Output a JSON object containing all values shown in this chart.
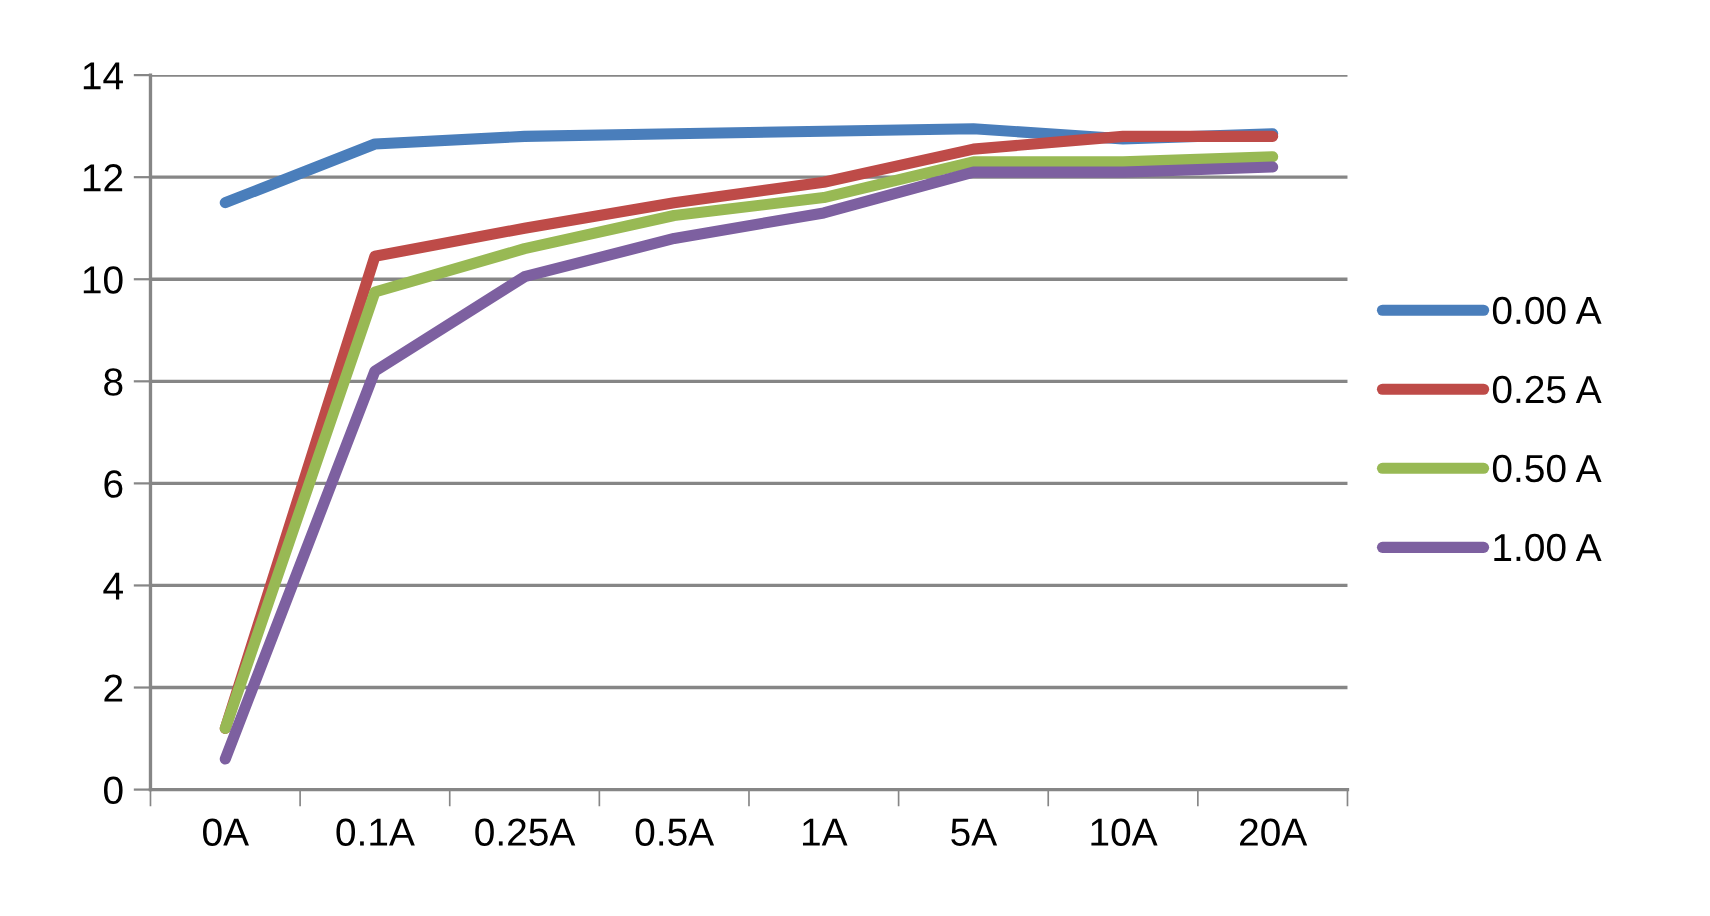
{
  "chart_data": {
    "type": "line",
    "categories": [
      "0A",
      "0.1A",
      "0.25A",
      "0.5A",
      "1A",
      "5A",
      "10A",
      "20A"
    ],
    "series": [
      {
        "name": "0.00 A",
        "color": "#4a7ebb",
        "values": [
          11.5,
          12.65,
          12.8,
          12.85,
          12.9,
          12.95,
          12.75,
          12.85
        ]
      },
      {
        "name": "0.25 A",
        "color": "#be4b48",
        "values": [
          1.2,
          10.45,
          11.0,
          11.5,
          11.9,
          12.55,
          12.8,
          12.8
        ]
      },
      {
        "name": "0.50 A",
        "color": "#98b954",
        "values": [
          1.2,
          9.75,
          10.6,
          11.25,
          11.6,
          12.3,
          12.3,
          12.4
        ]
      },
      {
        "name": "1.00 A",
        "color": "#7d60a0",
        "values": [
          0.6,
          8.2,
          10.05,
          10.8,
          11.3,
          12.1,
          12.1,
          12.2
        ]
      }
    ],
    "ylim": [
      0,
      14
    ],
    "yticks": [
      0,
      2,
      4,
      6,
      8,
      10,
      12,
      14
    ],
    "grid": "y",
    "legend": "right",
    "marker": "none",
    "line_style": "solid"
  }
}
